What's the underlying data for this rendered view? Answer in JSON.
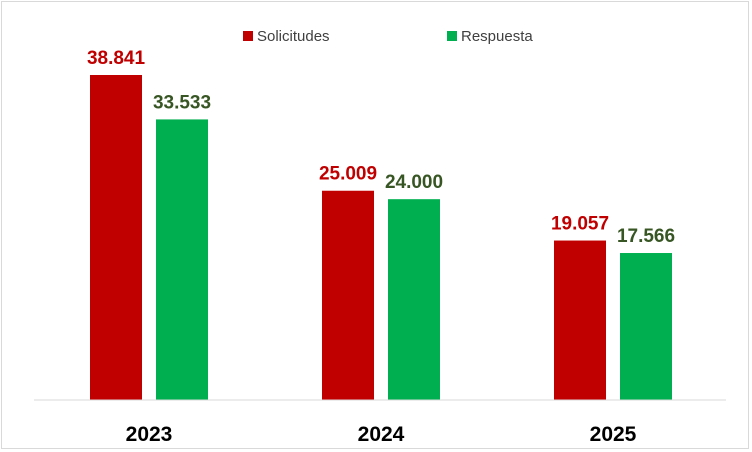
{
  "chart_data": {
    "type": "bar",
    "categories": [
      "2023",
      "2024",
      "2025"
    ],
    "series": [
      {
        "name": "Solicitudes",
        "values": [
          38841,
          25009,
          19057
        ],
        "labels": [
          "38.841",
          "25.009",
          "19.057"
        ],
        "color": "#c00000",
        "label_color": "#c00000"
      },
      {
        "name": "Respuesta",
        "values": [
          33533,
          24000,
          17566
        ],
        "labels": [
          "33.533",
          "24.000",
          "17.566"
        ],
        "color": "#00b050",
        "label_color": "#375623"
      }
    ],
    "ylim": [
      0,
      40000
    ],
    "grid": false,
    "legend": "top-center"
  }
}
